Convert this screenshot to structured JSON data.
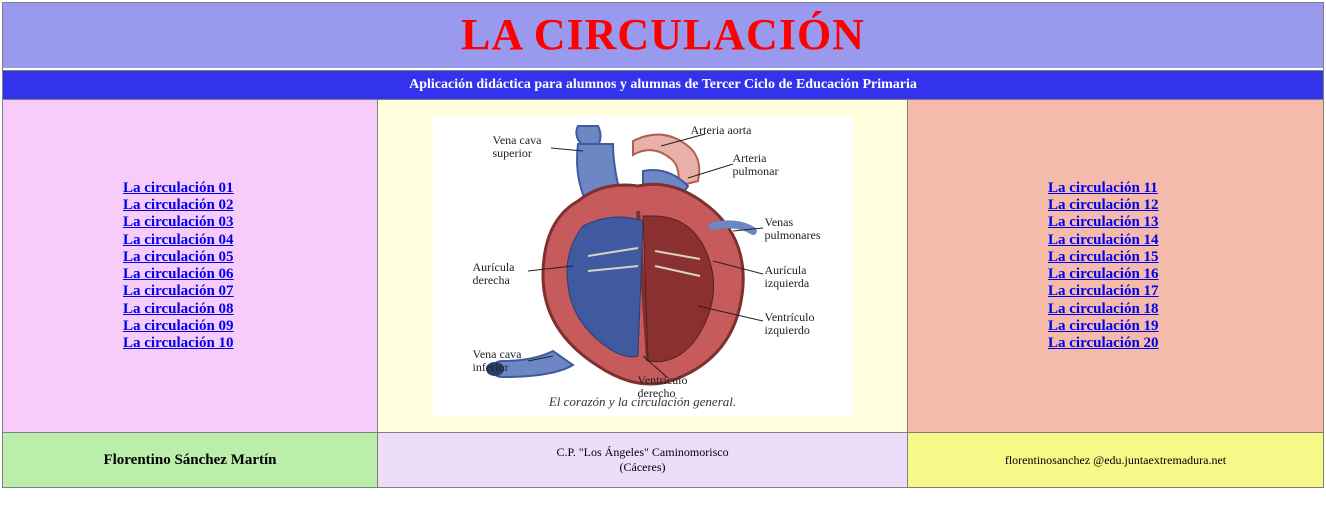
{
  "title": "LA CIRCULACIÓN",
  "subtitle": "Aplicación didáctica para alumnos y alumnas de Tercer Ciclo de Educación Primaria",
  "colors": {
    "title_bg": "#9999ee",
    "title_text": "#ff0000",
    "subtitle_bg": "#3333ee",
    "subtitle_text": "#ffffff",
    "left_bg": "#f8ccf8",
    "center_bg": "#ffffdd",
    "right_bg": "#f4bbaa",
    "link": "#0000ee",
    "footer_a_bg": "#bbeeaa",
    "footer_b_bg": "#eeddf8",
    "footer_c_bg": "#f8f888",
    "border": "#808080"
  },
  "links_left": [
    "La circulación 01",
    "La circulación 02",
    "La circulación 03",
    "La circulación 04",
    "La circulación 05",
    "La circulación 06",
    "La circulación 07",
    "La circulación 08",
    "La circulación 09",
    "La circulación 10"
  ],
  "links_right": [
    "La circulación 11",
    "La circulación 12",
    "La circulación 13",
    "La circulación 14",
    "La circulación 15",
    "La circulación 16",
    "La circulación 17",
    "La circulación 18",
    "La circulación 19",
    "La circulación 20"
  ],
  "diagram": {
    "caption": "El corazón y la circulación general.",
    "labels": {
      "vena_cava_superior": "Vena cava\nsuperior",
      "arteria_aorta": "Arteria aorta",
      "arteria_pulmonar": "Arteria\npulmonar",
      "venas_pulmonares": "Venas\npulmonares",
      "auricula_izquierda": "Aurícula\nizquierda",
      "auricula_derecha": "Aurícula\nderecha",
      "ventriculo_izquierdo": "Ventrículo\nizquierdo",
      "vena_cava_inferior": "Vena cava\ninferior",
      "ventriculo_derecho": "Ventrículo\nderecho"
    },
    "heart_colors": {
      "vein": "#6d86c4",
      "vein_dark": "#3f5aa0",
      "artery": "#c75a5a",
      "artery_light": "#e8b0a8",
      "muscle": "#b94a4a",
      "muscle_dark": "#7e2f2f",
      "outline": "#222222"
    }
  },
  "footer": {
    "author": "Florentino Sánchez Martín",
    "school_line1": "C.P. \"Los Ángeles\" Caminomorisco",
    "school_line2": "(Cáceres)",
    "email": "florentinosanchez @edu.juntaextremadura.net"
  }
}
